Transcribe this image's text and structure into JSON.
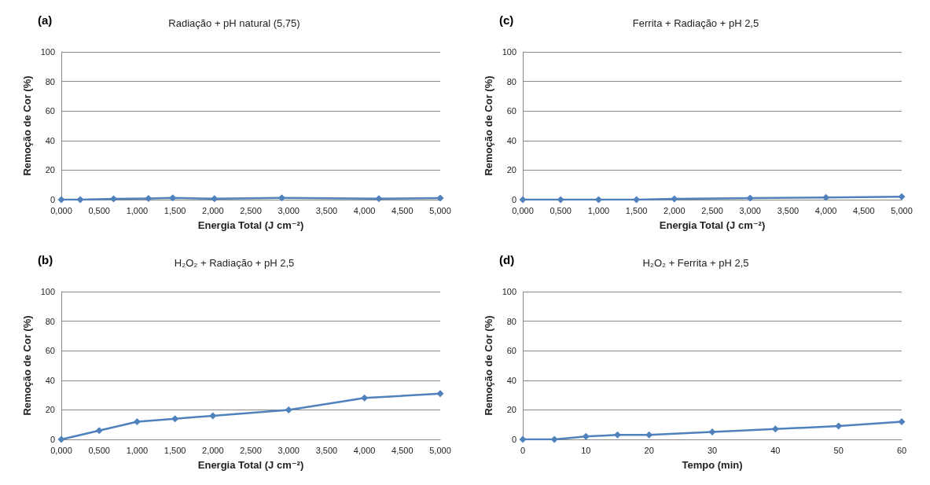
{
  "chart_data": [
    {
      "type": "line",
      "title": "Radiação + pH natural (5,75)",
      "annotations": [
        "(a)"
      ],
      "xlabel": "Energia Total (J cm⁻²)",
      "ylabel": "Remoção de Cor (%)",
      "x": [
        0,
        0.25,
        0.69,
        1.15,
        1.47,
        2.02,
        2.91,
        4.19,
        5.0
      ],
      "series": [
        {
          "color": "#4f81bd",
          "values": [
            0,
            0,
            0.5,
            0.8,
            1.2,
            0.6,
            1.2,
            0.7,
            1.0
          ]
        }
      ],
      "xlim": [
        0,
        5
      ],
      "xticks": [
        {
          "value": 0,
          "label": "0,000"
        },
        {
          "value": 0.5,
          "label": "0,500"
        },
        {
          "value": 1,
          "label": "1,000"
        },
        {
          "value": 1.5,
          "label": "1,500"
        },
        {
          "value": 2,
          "label": "2,000"
        },
        {
          "value": 2.5,
          "label": "2,500"
        },
        {
          "value": 3,
          "label": "3,000"
        },
        {
          "value": 3.5,
          "label": "3,500"
        },
        {
          "value": 4,
          "label": "4,000"
        },
        {
          "value": 4.5,
          "label": "4,500"
        },
        {
          "value": 5,
          "label": "5,000"
        }
      ],
      "ylim": [
        0,
        100
      ],
      "yticks": [
        0,
        20,
        40,
        60,
        80,
        100
      ],
      "grid": "y",
      "marker": "diamond",
      "line_style": "solid"
    },
    {
      "type": "line",
      "title": "Ferrita + Radiação + pH 2,5",
      "annotations": [
        "(c)"
      ],
      "xlabel": "Energia Total (J cm⁻²)",
      "ylabel": "Remoção de Cor (%)",
      "x": [
        0,
        0.5,
        1,
        1.5,
        2,
        3,
        4,
        5
      ],
      "series": [
        {
          "color": "#4f81bd",
          "values": [
            0,
            0,
            0,
            0,
            0.5,
            1,
            1.5,
            2
          ]
        }
      ],
      "xlim": [
        0,
        5
      ],
      "xticks": [
        {
          "value": 0,
          "label": "0,000"
        },
        {
          "value": 0.5,
          "label": "0,500"
        },
        {
          "value": 1,
          "label": "1,000"
        },
        {
          "value": 1.5,
          "label": "1,500"
        },
        {
          "value": 2,
          "label": "2,000"
        },
        {
          "value": 2.5,
          "label": "2,500"
        },
        {
          "value": 3,
          "label": "3,000"
        },
        {
          "value": 3.5,
          "label": "3,500"
        },
        {
          "value": 4,
          "label": "4,000"
        },
        {
          "value": 4.5,
          "label": "4,500"
        },
        {
          "value": 5,
          "label": "5,000"
        }
      ],
      "ylim": [
        0,
        100
      ],
      "yticks": [
        0,
        20,
        40,
        60,
        80,
        100
      ],
      "grid": "y",
      "marker": "diamond",
      "line_style": "solid"
    },
    {
      "type": "line",
      "title": "H₂O₂ + Radiação + pH 2,5",
      "annotations": [
        "(b)"
      ],
      "xlabel": "Energia Total (J cm⁻²)",
      "ylabel": "Remoção de Cor (%)",
      "x": [
        0,
        0.5,
        1,
        1.5,
        2,
        3,
        4,
        5
      ],
      "series": [
        {
          "color": "#4f81bd",
          "values": [
            0,
            6,
            12,
            14,
            16,
            20,
            28,
            31
          ]
        }
      ],
      "xlim": [
        0,
        5
      ],
      "xticks": [
        {
          "value": 0,
          "label": "0,000"
        },
        {
          "value": 0.5,
          "label": "0,500"
        },
        {
          "value": 1,
          "label": "1,000"
        },
        {
          "value": 1.5,
          "label": "1,500"
        },
        {
          "value": 2,
          "label": "2,000"
        },
        {
          "value": 2.5,
          "label": "2,500"
        },
        {
          "value": 3,
          "label": "3,000"
        },
        {
          "value": 3.5,
          "label": "3,500"
        },
        {
          "value": 4,
          "label": "4,000"
        },
        {
          "value": 4.5,
          "label": "4,500"
        },
        {
          "value": 5,
          "label": "5,000"
        }
      ],
      "ylim": [
        0,
        100
      ],
      "yticks": [
        0,
        20,
        40,
        60,
        80,
        100
      ],
      "grid": "y",
      "marker": "diamond",
      "line_style": "solid"
    },
    {
      "type": "line",
      "title": "H₂O₂ + Ferrita + pH 2,5",
      "annotations": [
        "(d)"
      ],
      "xlabel": "Tempo (min)",
      "ylabel": "Remoção de Cor (%)",
      "x": [
        0,
        5,
        10,
        15,
        20,
        30,
        40,
        50,
        60
      ],
      "series": [
        {
          "color": "#4f81bd",
          "values": [
            0,
            0,
            2,
            3,
            3,
            5,
            7,
            9,
            12
          ]
        }
      ],
      "xlim": [
        0,
        60
      ],
      "xticks": [
        0,
        10,
        20,
        30,
        40,
        50,
        60
      ],
      "ylim": [
        0,
        100
      ],
      "yticks": [
        0,
        20,
        40,
        60,
        80,
        100
      ],
      "grid": "y",
      "marker": "diamond",
      "line_style": "solid"
    }
  ]
}
